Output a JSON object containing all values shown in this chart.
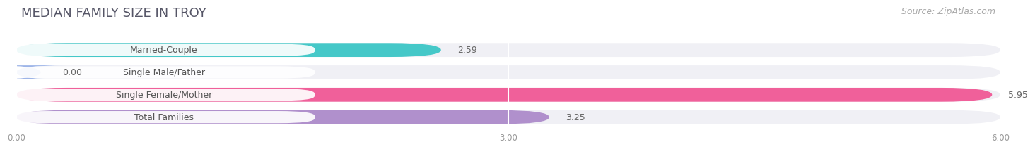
{
  "title": "MEDIAN FAMILY SIZE IN TROY",
  "source": "Source: ZipAtlas.com",
  "categories": [
    "Married-Couple",
    "Single Male/Father",
    "Single Female/Mother",
    "Total Families"
  ],
  "values": [
    2.59,
    0.0,
    5.95,
    3.25
  ],
  "bar_colors": [
    "#45c8c8",
    "#9db4e8",
    "#f0609a",
    "#b090cc"
  ],
  "bar_label_colors": [
    "#45c8c8",
    "#9db4e8",
    "#f0609a",
    "#b090cc"
  ],
  "xlim": [
    0,
    6.0
  ],
  "xticks": [
    0.0,
    3.0,
    6.0
  ],
  "xtick_labels": [
    "0.00",
    "3.00",
    "6.00"
  ],
  "background_color": "#ffffff",
  "bar_bg_color": "#f0f0f5",
  "title_fontsize": 13,
  "source_fontsize": 9,
  "label_fontsize": 9,
  "value_fontsize": 9
}
